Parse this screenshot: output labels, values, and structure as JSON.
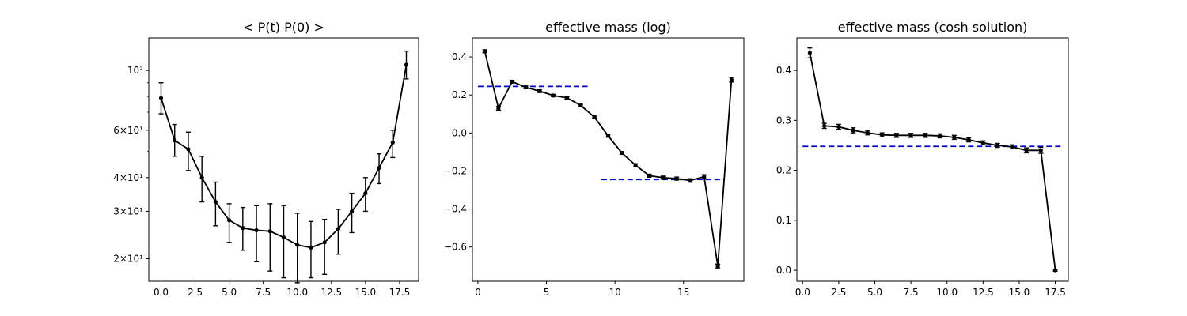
{
  "chart_data": [
    {
      "type": "line",
      "title": "< P(t)  P(0) >",
      "yscale": "log",
      "xlim": [
        -0.9,
        18.9
      ],
      "ylim": [
        16.5,
        132
      ],
      "xticks": [
        "0.0",
        "2.5",
        "5.0",
        "7.5",
        "10.0",
        "12.5",
        "15.0",
        "17.5"
      ],
      "yticks": [
        {
          "value": 20,
          "label": "2×10¹"
        },
        {
          "value": 30,
          "label": "3×10¹"
        },
        {
          "value": 40,
          "label": "4×10¹"
        },
        {
          "value": 60,
          "label": "6×10¹"
        },
        {
          "value": 100,
          "label": "10²"
        }
      ],
      "series": [
        {
          "x": [
            0,
            1,
            2,
            3,
            4,
            5,
            6,
            7,
            8,
            9,
            10,
            11,
            12,
            13,
            14,
            15,
            16,
            17,
            18
          ],
          "y": [
            79,
            55,
            51,
            40,
            32.5,
            27.8,
            26,
            25.5,
            25.3,
            24,
            22.5,
            22,
            23,
            25.8,
            30,
            35,
            43.5,
            54,
            105
          ],
          "yerr_low": [
            69,
            48,
            42.5,
            32.5,
            26.5,
            23,
            21.5,
            19.5,
            18,
            17,
            16.3,
            17,
            17.5,
            20.8,
            25,
            30,
            38,
            47.5,
            93
          ],
          "yerr_high": [
            90,
            63,
            59,
            48,
            38.5,
            32,
            31,
            31.5,
            32,
            31.5,
            29.5,
            27.5,
            28,
            30.5,
            35,
            40,
            49,
            60,
            118
          ]
        }
      ]
    },
    {
      "type": "line",
      "title": "effective mass (log)",
      "xlim": [
        -0.4,
        19.4
      ],
      "ylim": [
        -0.78,
        0.5
      ],
      "xticks": [
        "0",
        "5",
        "10",
        "15"
      ],
      "yticks": [
        "−0.6",
        "−0.4",
        "−0.2",
        "0.0",
        "0.2",
        "0.4"
      ],
      "series": [
        {
          "x": [
            0.5,
            1.5,
            2.5,
            3.5,
            4.5,
            5.5,
            6.5,
            7.5,
            8.5,
            9.5,
            10.5,
            11.5,
            12.5,
            13.5,
            14.5,
            15.5,
            16.5,
            17.5,
            18.5
          ],
          "y": [
            0.43,
            0.13,
            0.27,
            0.24,
            0.22,
            0.197,
            0.185,
            0.145,
            0.083,
            -0.015,
            -0.105,
            -0.17,
            -0.225,
            -0.235,
            -0.24,
            -0.25,
            -0.23,
            -0.7,
            0.28
          ],
          "yerr": [
            0.008,
            0.01,
            0.007,
            0.007,
            0.007,
            0.006,
            0.006,
            0.006,
            0.006,
            0.007,
            0.007,
            0.008,
            0.008,
            0.008,
            0.008,
            0.009,
            0.01,
            0.01,
            0.012
          ]
        }
      ],
      "reference_lines": [
        {
          "y": 0.245,
          "x": [
            0,
            8
          ]
        },
        {
          "y": -0.245,
          "x": [
            9,
            18
          ]
        }
      ]
    },
    {
      "type": "line",
      "title": "effective mass (cosh solution)",
      "xlim": [
        -0.4,
        18.4
      ],
      "ylim": [
        -0.022,
        0.465
      ],
      "xticks": [
        "0.0",
        "2.5",
        "5.0",
        "7.5",
        "10.0",
        "12.5",
        "15.0",
        "17.5"
      ],
      "yticks": [
        "0.0",
        "0.1",
        "0.2",
        "0.3",
        "0.4"
      ],
      "series": [
        {
          "x": [
            0.5,
            1.5,
            2.5,
            3.5,
            4.5,
            5.5,
            6.5,
            7.5,
            8.5,
            9.5,
            10.5,
            11.5,
            12.5,
            13.5,
            14.5,
            15.5,
            16.5,
            17.5
          ],
          "y": [
            0.435,
            0.289,
            0.287,
            0.28,
            0.275,
            0.271,
            0.27,
            0.27,
            0.27,
            0.269,
            0.266,
            0.261,
            0.255,
            0.25,
            0.247,
            0.24,
            0.24,
            0.0
          ],
          "yerr": [
            0.01,
            0.005,
            0.005,
            0.005,
            0.004,
            0.004,
            0.004,
            0.004,
            0.004,
            0.004,
            0.004,
            0.004,
            0.004,
            0.004,
            0.004,
            0.005,
            0.006,
            0.002
          ]
        }
      ],
      "reference_lines": [
        {
          "y": 0.248,
          "x": [
            0,
            18
          ]
        }
      ]
    }
  ],
  "colors": {
    "series": "#000000",
    "reference_line": "#0000cc",
    "axes": "#000000",
    "background": "#ffffff"
  }
}
